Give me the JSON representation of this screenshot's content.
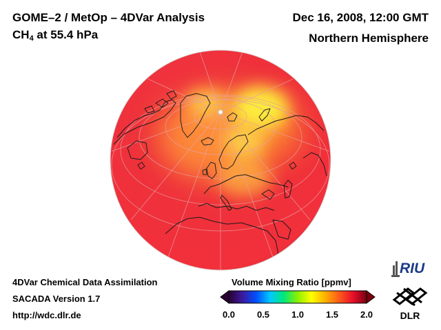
{
  "header": {
    "title_line1": "GOME–2 / MetOp – 4DVar Analysis",
    "species_main": "CH",
    "species_sub": "4",
    "species_rest": " at 55.4 hPa",
    "date": "Dec 16, 2008, 12:00 GMT",
    "region": "Northern Hemisphere"
  },
  "footer": {
    "line1": "4DVar Chemical Data Assimilation",
    "line2": "SACADA Version 1.7",
    "line3": "http://wdc.dlr.de"
  },
  "colorbar": {
    "title": "Volume Mixing Ratio [ppmv]",
    "ticks": [
      "0.0",
      "0.5",
      "1.0",
      "1.5",
      "2.0"
    ],
    "range": [
      0.0,
      2.0
    ],
    "colors": [
      "#2a0033",
      "#3a1aa0",
      "#0050ff",
      "#00c8ff",
      "#00e87a",
      "#8ef000",
      "#ffff00",
      "#ffb000",
      "#ff5a1a",
      "#e8102a",
      "#7a0010"
    ]
  },
  "map": {
    "projection": "orthographic",
    "field_colors": {
      "background": "#f2303b",
      "high": "#ffef3a"
    }
  },
  "logos": {
    "riu_text": "RIU",
    "dlr_text": "DLR"
  }
}
